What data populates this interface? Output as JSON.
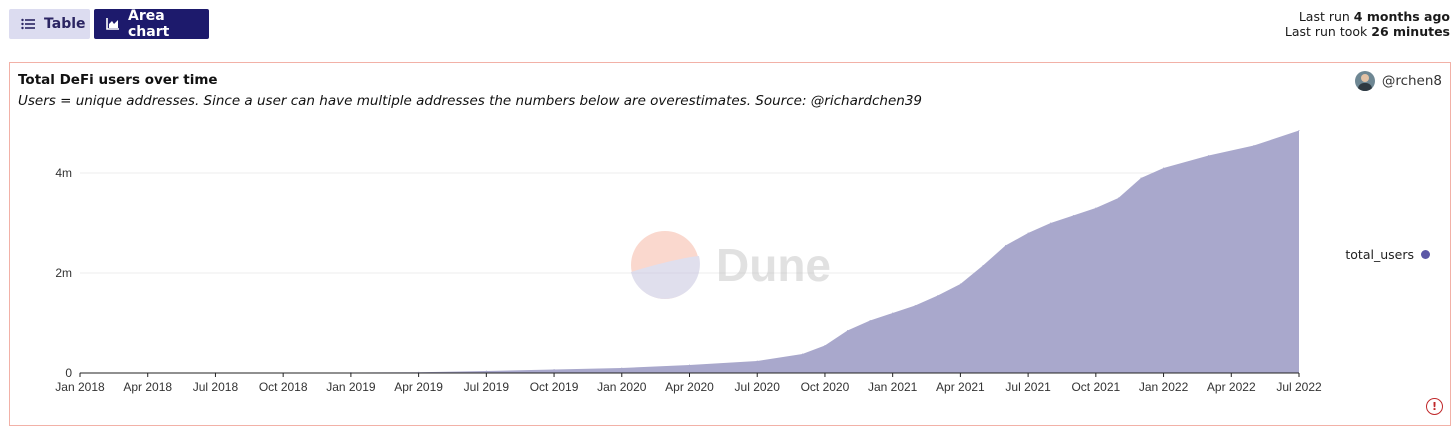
{
  "toolbar": {
    "table_label": "Table",
    "area_label": "Area chart",
    "table_icon": "list-icon",
    "area_icon": "area-chart-icon"
  },
  "run_info": {
    "line1_prefix": "Last run ",
    "line1_value": "4 months ago",
    "line2_prefix": "Last run took ",
    "line2_value": "26 minutes"
  },
  "card": {
    "title": "Total DeFi users over time",
    "subtitle": "Users = unique addresses. Since a user can have multiple addresses the numbers below are overestimates. Source: @richardchen39",
    "author": "@rchen8",
    "watermark": "Dune",
    "warning_glyph": "!"
  },
  "colors": {
    "area_fill": "#a9a8cc",
    "legend_dot": "#5c58a6",
    "active_tab": "#1d1a6c",
    "card_border": "#f2b1a7",
    "warning": "#c0282a"
  },
  "chart_data": {
    "type": "area",
    "series": [
      {
        "name": "total_users",
        "x": [
          "2018-01",
          "2018-07",
          "2019-01",
          "2019-04",
          "2019-07",
          "2019-10",
          "2020-01",
          "2020-04",
          "2020-07",
          "2020-09",
          "2020-10",
          "2020-11",
          "2020-12",
          "2021-01",
          "2021-02",
          "2021-03",
          "2021-04",
          "2021-05",
          "2021-06",
          "2021-07",
          "2021-08",
          "2021-09",
          "2021-10",
          "2021-11",
          "2021-12",
          "2022-01",
          "2022-03",
          "2022-05",
          "2022-07"
        ],
        "values": [
          0,
          0.005,
          0.01,
          0.015,
          0.04,
          0.07,
          0.1,
          0.16,
          0.24,
          0.38,
          0.55,
          0.85,
          1.05,
          1.2,
          1.35,
          1.55,
          1.78,
          2.15,
          2.55,
          2.8,
          3.0,
          3.15,
          3.3,
          3.5,
          3.9,
          4.1,
          4.35,
          4.55,
          4.85
        ]
      }
    ],
    "y_ticks": [
      {
        "value": 0,
        "label": "0"
      },
      {
        "value": 2,
        "label": "2m"
      },
      {
        "value": 4,
        "label": "4m"
      }
    ],
    "ylim": [
      0,
      5.2
    ],
    "x_ticks": [
      {
        "x": "2018-01",
        "label": "Jan 2018"
      },
      {
        "x": "2018-04",
        "label": "Apr 2018"
      },
      {
        "x": "2018-07",
        "label": "Jul 2018"
      },
      {
        "x": "2018-10",
        "label": "Oct 2018"
      },
      {
        "x": "2019-01",
        "label": "Jan 2019"
      },
      {
        "x": "2019-04",
        "label": "Apr 2019"
      },
      {
        "x": "2019-07",
        "label": "Jul 2019"
      },
      {
        "x": "2019-10",
        "label": "Oct 2019"
      },
      {
        "x": "2020-01",
        "label": "Jan 2020"
      },
      {
        "x": "2020-04",
        "label": "Apr 2020"
      },
      {
        "x": "2020-07",
        "label": "Jul 2020"
      },
      {
        "x": "2020-10",
        "label": "Oct 2020"
      },
      {
        "x": "2021-01",
        "label": "Jan 2021"
      },
      {
        "x": "2021-04",
        "label": "Apr 2021"
      },
      {
        "x": "2021-07",
        "label": "Jul 2021"
      },
      {
        "x": "2021-10",
        "label": "Oct 2021"
      },
      {
        "x": "2022-01",
        "label": "Jan 2022"
      },
      {
        "x": "2022-04",
        "label": "Apr 2022"
      },
      {
        "x": "2022-07",
        "label": "Jul 2022"
      }
    ],
    "xlim": [
      "2018-01",
      "2022-07"
    ],
    "grid": true,
    "legend": "right"
  }
}
